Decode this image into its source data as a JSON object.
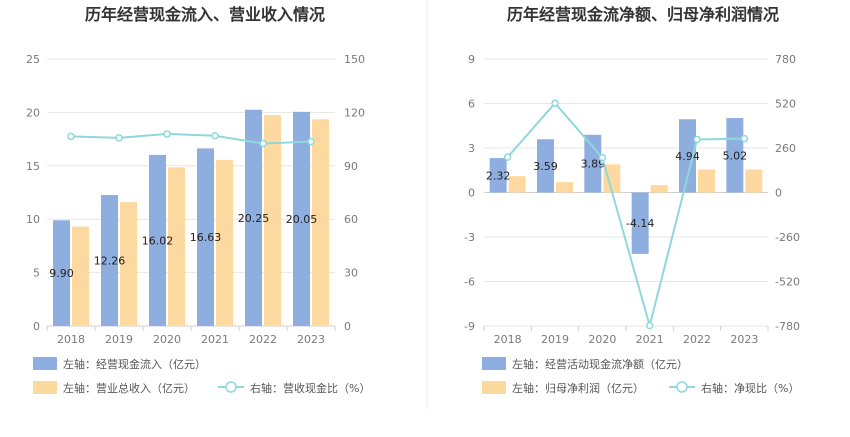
{
  "chart_data": [
    {
      "type": "bar",
      "title": "历年经营现金流入、营业收入情况",
      "categories": [
        "2018",
        "2019",
        "2020",
        "2021",
        "2022",
        "2023"
      ],
      "y_left": {
        "min": 0,
        "max": 25,
        "ticks": [
          "0",
          "5",
          "10",
          "15",
          "20",
          "25"
        ]
      },
      "y_right": {
        "min": 0,
        "max": 150,
        "ticks": [
          "0",
          "30",
          "60",
          "90",
          "120",
          "150"
        ]
      },
      "series": [
        {
          "name": "左轴：经营现金流入（亿元）",
          "type": "bar",
          "axis": "left",
          "color": "#8eaee0",
          "values": [
            9.9,
            12.26,
            16.02,
            16.63,
            20.25,
            20.05
          ],
          "labels": [
            "9.90",
            "12.26",
            "16.02",
            "16.63",
            "20.25",
            "20.05"
          ]
        },
        {
          "name": "左轴：营业总收入（亿元）",
          "type": "bar",
          "axis": "left",
          "color": "#fdd9a0",
          "values": [
            9.3,
            11.6,
            14.85,
            15.55,
            19.75,
            19.35
          ]
        },
        {
          "name": "右轴：营收现金比（%）",
          "type": "line",
          "axis": "right",
          "color": "#8fd8db",
          "values": [
            106.5,
            105.7,
            107.9,
            106.9,
            102.5,
            103.6
          ]
        }
      ],
      "grid": true
    },
    {
      "type": "bar",
      "title": "历年经营现金流净额、归母净利润情况",
      "categories": [
        "2018",
        "2019",
        "2020",
        "2021",
        "2022",
        "2023"
      ],
      "y_left": {
        "min": -9,
        "max": 9,
        "ticks": [
          "-9",
          "-6",
          "-3",
          "0",
          "3",
          "6",
          "9"
        ]
      },
      "y_right": {
        "min": -780,
        "max": 780,
        "ticks": [
          "-780",
          "-520",
          "-260",
          "0",
          "260",
          "520",
          "780"
        ]
      },
      "series": [
        {
          "name": "左轴：经营活动现金流净额（亿元）",
          "type": "bar",
          "axis": "left",
          "color": "#8eaee0",
          "values": [
            2.32,
            3.59,
            3.89,
            -4.14,
            4.94,
            5.02
          ],
          "labels": [
            "2.32",
            "3.59",
            "3.89",
            "-4.14",
            "4.94",
            "5.02"
          ]
        },
        {
          "name": "左轴：归母净利润（亿元）",
          "type": "bar",
          "axis": "left",
          "color": "#fdd9a0",
          "values": [
            1.1,
            0.7,
            1.9,
            0.5,
            1.55,
            1.55
          ]
        },
        {
          "name": "右轴：净现比（%）",
          "type": "line",
          "axis": "right",
          "color": "#8fd8db",
          "values": [
            207,
            522,
            204,
            -778,
            310,
            315
          ]
        }
      ],
      "grid": true
    }
  ]
}
